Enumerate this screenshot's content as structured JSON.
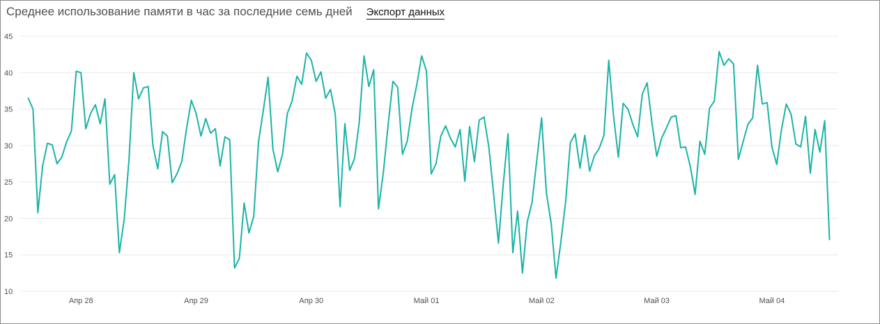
{
  "header": {
    "title": "Среднее использование памяти в час за последние семь дней",
    "export_label": "Экспорт данных"
  },
  "colors": {
    "line": "#1ab3a6",
    "grid": "#e8e8e8",
    "text": "#505050"
  },
  "chart_data": {
    "type": "line",
    "title": "Среднее использование памяти в час за последние семь дней",
    "xlabel": "",
    "ylabel": "",
    "ylim": [
      10,
      45
    ],
    "yticks": [
      10,
      15,
      20,
      25,
      30,
      35,
      40,
      45
    ],
    "xticks": [
      "Апр 28",
      "Апр 29",
      "Апр 30",
      "Май 01",
      "Май 02",
      "Май 03",
      "Май 04"
    ],
    "xtick_hours": [
      11,
      35,
      59,
      83,
      107,
      131,
      155
    ],
    "x_unit": "hours",
    "grid": true,
    "legend": "none",
    "series": [
      {
        "values": [
          36.5,
          35,
          20.8,
          27.2,
          30.3,
          30.1,
          27.5,
          28.4,
          30.5,
          32,
          40.2,
          40,
          32.3,
          34.4,
          35.6,
          33,
          36.4,
          24.7,
          26,
          15.3,
          19.8,
          28,
          40,
          36.4,
          37.9,
          38.1,
          30,
          26.8,
          31.9,
          31.3,
          24.9,
          26.1,
          27.8,
          32.3,
          36.2,
          34.4,
          31.3,
          33.7,
          31.7,
          32.3,
          27.2,
          31.2,
          30.8,
          13.2,
          14.5,
          22.1,
          18,
          20.3,
          30.5,
          34.8,
          39.4,
          29.5,
          26.4,
          28.8,
          34.4,
          36.1,
          39.5,
          38.4,
          42.7,
          41.7,
          38.8,
          40.1,
          36.5,
          37.7,
          34.3,
          21.6,
          33,
          26.6,
          28.2,
          33.2,
          42.3,
          38.1,
          40.4,
          21.3,
          26.2,
          32.8,
          38.8,
          38,
          28.8,
          30.6,
          35.1,
          38.4,
          42.3,
          40.2,
          26.1,
          27.5,
          31.3,
          32.7,
          31,
          29.8,
          32.2,
          25.1,
          32.6,
          27.8,
          33.5,
          33.9,
          29.8,
          23.3,
          16.6,
          24.6,
          31.6,
          15.3,
          21,
          12.5,
          19.5,
          22.2,
          28,
          33.8,
          23.5,
          19.3,
          11.8,
          16.7,
          22.3,
          30.4,
          31.6,
          26.9,
          31.4,
          26.5,
          28.6,
          29.6,
          31.4,
          41.7,
          34,
          28.4,
          35.8,
          35,
          32.9,
          31.2,
          37.1,
          38.6,
          33.1,
          28.5,
          31,
          32.4,
          33.9,
          34.1,
          29.7,
          29.8,
          27.1,
          23.3,
          30.6,
          28.8,
          35.1,
          36.1,
          42.9,
          41,
          41.9,
          41.2,
          28.1,
          30.5,
          32.9,
          33.8,
          41,
          35.7,
          35.9,
          29.8,
          27.4,
          32.2,
          35.7,
          34.3,
          30.2,
          29.8,
          34,
          26.2,
          32.2,
          29.1,
          33.4,
          17.1
        ]
      }
    ]
  }
}
